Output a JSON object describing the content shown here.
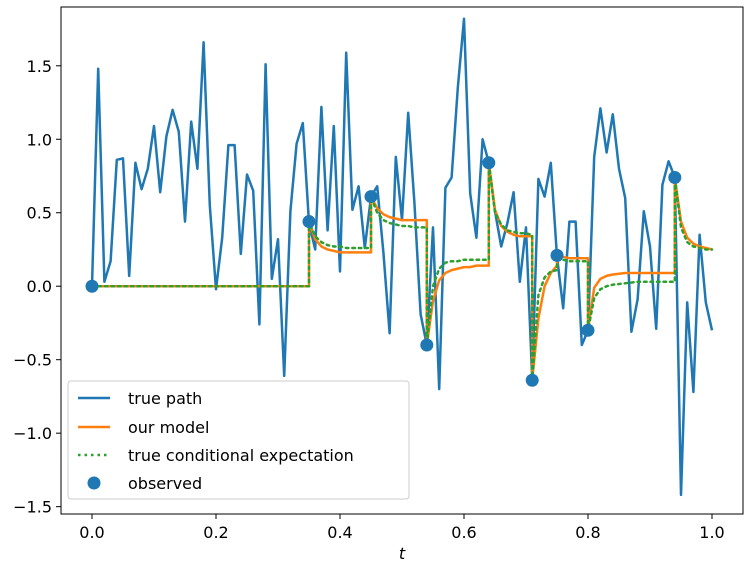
{
  "chart_data": {
    "type": "line",
    "title": "",
    "xlabel": "t",
    "ylabel": "",
    "xlim": [
      -0.05,
      1.05
    ],
    "ylim": [
      -1.55,
      1.9
    ],
    "xticks": [
      0.0,
      0.2,
      0.4,
      0.6,
      0.8,
      1.0
    ],
    "xtick_labels": [
      "0.0",
      "0.2",
      "0.4",
      "0.6",
      "0.8",
      "1.0"
    ],
    "yticks": [
      -1.5,
      -1.0,
      -0.5,
      0.0,
      0.5,
      1.0,
      1.5
    ],
    "ytick_labels": [
      "−1.5",
      "−1.0",
      "−0.5",
      "0.0",
      "0.5",
      "1.0",
      "1.5"
    ],
    "legend_position": "bottom-left",
    "colors": {
      "true_path": "#1f77b4",
      "our_model": "#ff7f0e",
      "true_conditional_expectation": "#2ca02c",
      "observed": "#1f77b4"
    },
    "series": [
      {
        "name": "true path",
        "style": "line",
        "x": [
          0.0,
          0.01,
          0.02,
          0.03,
          0.04,
          0.05,
          0.06,
          0.07,
          0.08,
          0.09,
          0.1,
          0.11,
          0.12,
          0.13,
          0.14,
          0.15,
          0.16,
          0.17,
          0.18,
          0.19,
          0.2,
          0.21,
          0.22,
          0.23,
          0.24,
          0.25,
          0.26,
          0.27,
          0.28,
          0.29,
          0.3,
          0.31,
          0.32,
          0.33,
          0.34,
          0.35,
          0.36,
          0.37,
          0.38,
          0.39,
          0.4,
          0.41,
          0.42,
          0.43,
          0.44,
          0.45,
          0.46,
          0.47,
          0.48,
          0.49,
          0.5,
          0.51,
          0.52,
          0.53,
          0.54,
          0.55,
          0.56,
          0.57,
          0.58,
          0.59,
          0.6,
          0.61,
          0.62,
          0.63,
          0.64,
          0.65,
          0.66,
          0.67,
          0.68,
          0.69,
          0.7,
          0.71,
          0.72,
          0.73,
          0.74,
          0.75,
          0.76,
          0.77,
          0.78,
          0.79,
          0.8,
          0.81,
          0.82,
          0.83,
          0.84,
          0.85,
          0.86,
          0.87,
          0.88,
          0.89,
          0.9,
          0.91,
          0.92,
          0.93,
          0.94,
          0.95,
          0.96,
          0.97,
          0.98,
          0.99,
          1.0
        ],
        "values": [
          0.0,
          1.48,
          0.03,
          0.17,
          0.86,
          0.87,
          0.07,
          0.84,
          0.66,
          0.8,
          1.09,
          0.64,
          1.02,
          1.2,
          1.05,
          0.44,
          1.12,
          0.8,
          1.66,
          0.55,
          -0.02,
          0.33,
          0.96,
          0.96,
          0.22,
          0.76,
          0.65,
          -0.26,
          1.51,
          0.05,
          0.32,
          -0.61,
          0.51,
          0.97,
          1.11,
          0.43,
          0.25,
          1.22,
          0.38,
          1.09,
          0.1,
          1.59,
          0.52,
          0.68,
          0.26,
          0.61,
          0.68,
          0.23,
          -0.32,
          0.88,
          0.45,
          1.18,
          0.57,
          -0.19,
          -0.4,
          0.4,
          -0.7,
          0.67,
          0.74,
          1.35,
          1.82,
          0.63,
          0.33,
          1.0,
          0.84,
          0.51,
          0.27,
          0.43,
          0.64,
          0.03,
          0.4,
          -0.63,
          0.73,
          0.61,
          0.84,
          0.2,
          -0.15,
          0.44,
          0.44,
          -0.4,
          -0.3,
          0.88,
          1.21,
          0.91,
          1.17,
          0.8,
          0.6,
          -0.31,
          -0.09,
          0.51,
          0.27,
          -0.29,
          0.69,
          0.85,
          0.74,
          -1.42,
          -0.11,
          -0.72,
          0.35,
          -0.11,
          -0.3
        ]
      },
      {
        "name": "our model",
        "style": "line",
        "x": [
          0.0,
          0.35,
          0.35,
          0.36,
          0.37,
          0.38,
          0.39,
          0.4,
          0.41,
          0.42,
          0.43,
          0.44,
          0.45,
          0.45,
          0.46,
          0.47,
          0.48,
          0.49,
          0.5,
          0.51,
          0.52,
          0.53,
          0.54,
          0.54,
          0.55,
          0.56,
          0.57,
          0.58,
          0.59,
          0.6,
          0.61,
          0.62,
          0.63,
          0.64,
          0.64,
          0.65,
          0.66,
          0.67,
          0.68,
          0.69,
          0.7,
          0.71,
          0.71,
          0.72,
          0.73,
          0.74,
          0.75,
          0.75,
          0.76,
          0.77,
          0.78,
          0.79,
          0.8,
          0.8,
          0.81,
          0.82,
          0.83,
          0.84,
          0.86,
          0.88,
          0.9,
          0.92,
          0.94,
          0.94,
          0.95,
          0.96,
          0.97,
          0.98,
          0.99,
          1.0
        ],
        "values": [
          0.0,
          0.0,
          0.44,
          0.32,
          0.27,
          0.25,
          0.24,
          0.23,
          0.23,
          0.23,
          0.23,
          0.23,
          0.23,
          0.61,
          0.53,
          0.49,
          0.47,
          0.46,
          0.45,
          0.45,
          0.45,
          0.45,
          0.45,
          -0.4,
          -0.1,
          0.04,
          0.09,
          0.11,
          0.12,
          0.13,
          0.13,
          0.14,
          0.14,
          0.14,
          0.84,
          0.52,
          0.41,
          0.37,
          0.35,
          0.34,
          0.34,
          0.34,
          -0.64,
          -0.22,
          0.0,
          0.09,
          0.14,
          0.21,
          0.2,
          0.19,
          0.19,
          0.19,
          0.19,
          -0.3,
          -0.01,
          0.05,
          0.07,
          0.08,
          0.09,
          0.09,
          0.09,
          0.09,
          0.09,
          0.74,
          0.44,
          0.33,
          0.29,
          0.27,
          0.26,
          0.25
        ]
      },
      {
        "name": "true conditional expectation",
        "style": "dotted",
        "x": [
          0.0,
          0.35,
          0.35,
          0.36,
          0.37,
          0.38,
          0.39,
          0.4,
          0.41,
          0.42,
          0.43,
          0.44,
          0.45,
          0.45,
          0.46,
          0.47,
          0.48,
          0.49,
          0.5,
          0.51,
          0.52,
          0.53,
          0.54,
          0.54,
          0.55,
          0.56,
          0.57,
          0.58,
          0.59,
          0.6,
          0.61,
          0.62,
          0.63,
          0.64,
          0.64,
          0.65,
          0.66,
          0.67,
          0.68,
          0.69,
          0.7,
          0.71,
          0.71,
          0.72,
          0.73,
          0.74,
          0.75,
          0.75,
          0.76,
          0.77,
          0.78,
          0.79,
          0.8,
          0.8,
          0.81,
          0.82,
          0.83,
          0.84,
          0.86,
          0.88,
          0.9,
          0.92,
          0.94,
          0.94,
          0.95,
          0.96,
          0.97,
          0.98,
          0.99,
          1.0
        ],
        "values": [
          0.0,
          0.0,
          0.44,
          0.34,
          0.3,
          0.28,
          0.27,
          0.27,
          0.26,
          0.26,
          0.26,
          0.26,
          0.26,
          0.61,
          0.5,
          0.45,
          0.43,
          0.42,
          0.41,
          0.41,
          0.4,
          0.4,
          0.4,
          -0.4,
          0.0,
          0.12,
          0.16,
          0.17,
          0.17,
          0.18,
          0.18,
          0.18,
          0.18,
          0.18,
          0.84,
          0.5,
          0.42,
          0.38,
          0.37,
          0.36,
          0.36,
          0.35,
          -0.64,
          -0.06,
          0.06,
          0.1,
          0.11,
          0.21,
          0.18,
          0.17,
          0.17,
          0.17,
          0.17,
          -0.3,
          -0.08,
          -0.02,
          0.0,
          0.01,
          0.02,
          0.03,
          0.03,
          0.03,
          0.03,
          0.74,
          0.4,
          0.3,
          0.27,
          0.26,
          0.25,
          0.25
        ]
      },
      {
        "name": "observed",
        "style": "scatter",
        "x": [
          0.0,
          0.35,
          0.45,
          0.54,
          0.64,
          0.71,
          0.75,
          0.8,
          0.94
        ],
        "values": [
          0.0,
          0.44,
          0.61,
          -0.4,
          0.84,
          -0.64,
          0.21,
          -0.3,
          0.74
        ]
      }
    ]
  }
}
